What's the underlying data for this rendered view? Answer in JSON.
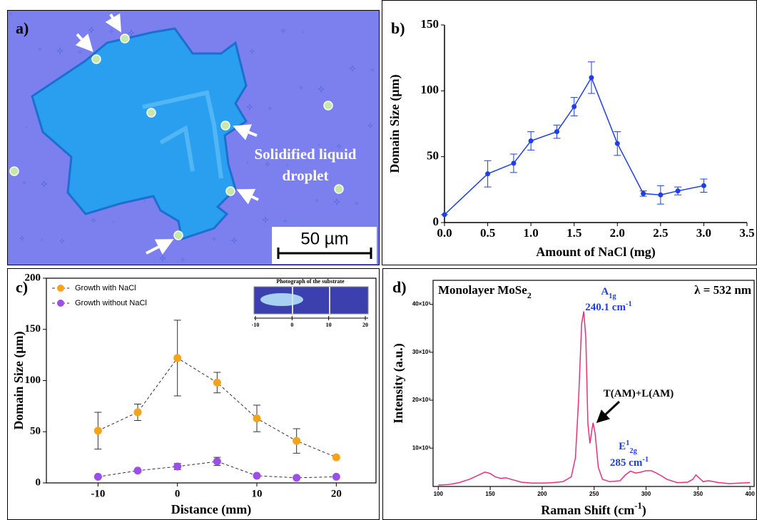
{
  "image_panel": {
    "panel_label": "a)",
    "annotation": [
      "Solidified liquid",
      "droplet"
    ],
    "scale_bar": "50 µm"
  },
  "chart_data": [
    {
      "type": "line",
      "panel_label": "b)",
      "x_label": "Amount of NaCl (mg)",
      "y_label": "Domain Size (μm)",
      "x": [
        0,
        0.5,
        0.8,
        1.0,
        1.3,
        1.5,
        1.7,
        2.0,
        2.3,
        2.5,
        2.7,
        3.0
      ],
      "series": [
        {
          "color": "#1f3fe6",
          "values": [
            6,
            37,
            45,
            62,
            69,
            88,
            110,
            60,
            22,
            21,
            24,
            28
          ],
          "errors": [
            0,
            10,
            7,
            7,
            5,
            7,
            12,
            9,
            2,
            7,
            3,
            5
          ]
        }
      ],
      "xlim": [
        0,
        3.5
      ],
      "xticks": [
        {
          "value": 0,
          "label": "0.0"
        },
        0.5,
        {
          "value": 1,
          "label": "1.0"
        },
        1.5,
        {
          "value": 2,
          "label": "2.0"
        },
        2.5,
        {
          "value": 3,
          "label": "3.0"
        },
        3.5
      ],
      "ylim": [
        0,
        150
      ],
      "yticks": [
        0,
        50,
        100,
        150
      ]
    },
    {
      "type": "line",
      "panel_label": "c)",
      "x_label": "Distance (mm)",
      "y_label": "Domain Size (μm)",
      "x": [
        -10,
        -5,
        0,
        5,
        10,
        15,
        20
      ],
      "series": [
        {
          "name": "Growth with NaCl",
          "color": "#f7a21b",
          "values": [
            51,
            69,
            122,
            98,
            63,
            41,
            25
          ],
          "errors": [
            18,
            8,
            37,
            10,
            13,
            12,
            0
          ]
        },
        {
          "name": "Growth without NaCl",
          "color": "#9b4fe6",
          "values": [
            6,
            12,
            16,
            21,
            7,
            5,
            6
          ],
          "errors": [
            0,
            1,
            3,
            4,
            1,
            0,
            0
          ]
        }
      ],
      "line_color": "#333333",
      "line_dash": true,
      "legend": "upper left",
      "xlim": [
        -16.5,
        25
      ],
      "xticks": [
        -10,
        0,
        10,
        20
      ],
      "ylim": [
        0,
        200
      ],
      "yticks": [
        0,
        50,
        100,
        150,
        200
      ],
      "inset": {
        "title": "Photograph of the substrate",
        "scale": [
          -10,
          0,
          10,
          20
        ]
      }
    },
    {
      "type": "line",
      "panel_label": "d)",
      "x_label": {
        "text": "Raman Shift (cm",
        "sup": "-1",
        "end": ")"
      },
      "y_label": "Intensity (a.u.)",
      "x": [
        100,
        110,
        120,
        130,
        140,
        145,
        150,
        155,
        160,
        165,
        170,
        180,
        190,
        200,
        210,
        220,
        228,
        232,
        235,
        238,
        240,
        242,
        244,
        246,
        248,
        249,
        251,
        254,
        258,
        265,
        275,
        280,
        285,
        290,
        295,
        300,
        305,
        310,
        315,
        320,
        330,
        340,
        345,
        348,
        350,
        355,
        360,
        370,
        380,
        390,
        400
      ],
      "series": [
        {
          "color": "#e8307e",
          "values": [
            2300,
            2400,
            2800,
            3500,
            4500,
            5000,
            4700,
            4000,
            3700,
            3800,
            3500,
            2900,
            2700,
            2700,
            2800,
            3000,
            4000,
            8000,
            20000,
            36000,
            38500,
            33000,
            15000,
            11000,
            14000,
            15300,
            13000,
            6000,
            3500,
            3000,
            3200,
            4400,
            5200,
            4800,
            5000,
            5300,
            5300,
            4800,
            4200,
            3500,
            2800,
            2900,
            3500,
            4400,
            4000,
            3000,
            3200,
            2800,
            2600,
            2700,
            2800
          ]
        }
      ],
      "xlim": [
        95,
        404
      ],
      "xticks": [
        100,
        150,
        200,
        250,
        300,
        350,
        400
      ],
      "ylim": [
        2000,
        45000
      ],
      "yticks": [
        {
          "value": 10000,
          "label": "10×10³"
        },
        {
          "value": 20000,
          "label": "20×10³"
        },
        {
          "value": 30000,
          "label": "30×10³"
        },
        {
          "value": 40000,
          "label": "40×10³"
        }
      ],
      "annotations": [
        {
          "text": "Monolayer MoSe",
          "sub": "2"
        },
        {
          "text": "λ = 532 nm"
        },
        {
          "text": "A",
          "sub": "1g"
        },
        {
          "text": "240.1 cm",
          "sup": "-1"
        },
        {
          "text": "T(AM)+L(AM)"
        },
        {
          "text": "E",
          "sup": "1",
          "sub": "2g"
        },
        {
          "text": "285 cm",
          "sup": "-1"
        }
      ]
    }
  ]
}
